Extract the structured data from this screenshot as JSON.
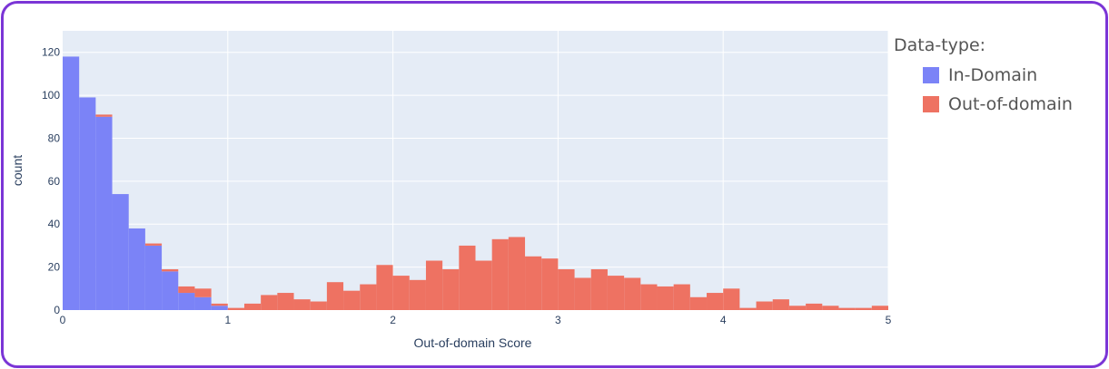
{
  "chart_data": {
    "type": "bar",
    "barmode": "stack",
    "xlabel": "Out-of-domain Score",
    "ylabel": "count",
    "xlim": [
      0,
      5
    ],
    "ylim": [
      0,
      130
    ],
    "x_ticks": [
      "0",
      "1",
      "2",
      "3",
      "4",
      "5"
    ],
    "y_ticks": [
      "0",
      "20",
      "40",
      "60",
      "80",
      "100",
      "120"
    ],
    "bin_width": 0.1,
    "bin_starts": [
      0.0,
      0.1,
      0.2,
      0.3,
      0.4,
      0.5,
      0.6,
      0.7,
      0.8,
      0.9,
      1.0,
      1.1,
      1.2,
      1.3,
      1.4,
      1.5,
      1.6,
      1.7,
      1.8,
      1.9,
      2.0,
      2.1,
      2.2,
      2.3,
      2.4,
      2.5,
      2.6,
      2.7,
      2.8,
      2.9,
      3.0,
      3.1,
      3.2,
      3.3,
      3.4,
      3.5,
      3.6,
      3.7,
      3.8,
      3.9,
      4.0,
      4.1,
      4.2,
      4.3,
      4.4,
      4.5,
      4.6,
      4.7,
      4.8,
      4.9
    ],
    "series": [
      {
        "name": "In-Domain",
        "color": "#7b83f7",
        "values": [
          118,
          99,
          90,
          54,
          38,
          30,
          18,
          8,
          6,
          2,
          0,
          0,
          0,
          0,
          0,
          0,
          0,
          0,
          0,
          0,
          0,
          0,
          0,
          0,
          0,
          0,
          0,
          0,
          0,
          0,
          0,
          0,
          0,
          0,
          0,
          0,
          0,
          0,
          0,
          0,
          0,
          0,
          0,
          0,
          0,
          0,
          0,
          0,
          0,
          0
        ]
      },
      {
        "name": "Out-of-domain",
        "color": "#ee7262",
        "values": [
          0,
          0,
          1,
          0,
          0,
          1,
          1,
          3,
          4,
          1,
          1,
          3,
          7,
          8,
          5,
          4,
          13,
          9,
          12,
          21,
          16,
          14,
          23,
          19,
          30,
          23,
          33,
          34,
          25,
          24,
          19,
          15,
          19,
          16,
          15,
          12,
          11,
          12,
          6,
          8,
          10,
          1,
          4,
          5,
          2,
          3,
          2,
          1,
          1,
          2
        ]
      }
    ],
    "legend": {
      "title": "Data-type:",
      "position": "top-right"
    },
    "grid": true
  }
}
